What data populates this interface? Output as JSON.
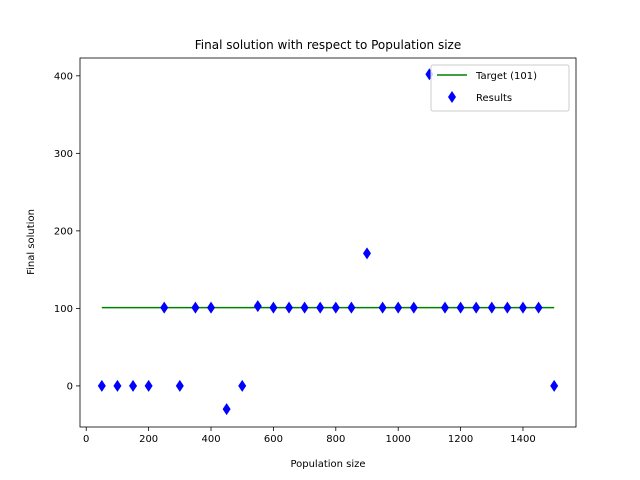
{
  "chart_data": {
    "type": "scatter",
    "title": "Final solution with respect to Population size",
    "xlabel": "Population size",
    "ylabel": "Final solution",
    "xlim": [
      -20,
      1570
    ],
    "ylim": [
      -53,
      423
    ],
    "xticks": [
      0,
      200,
      400,
      600,
      800,
      1000,
      1200,
      1400
    ],
    "yticks": [
      0,
      100,
      200,
      300,
      400
    ],
    "grid": false,
    "legend_position": "top-right",
    "series": [
      {
        "name": "Target (101)",
        "kind": "line",
        "color": "#008000",
        "x": [
          50,
          1500
        ],
        "y": [
          101,
          101
        ]
      },
      {
        "name": "Results",
        "kind": "scatter",
        "marker": "thin-diamond",
        "color": "#0000ff",
        "x": [
          50,
          100,
          150,
          200,
          250,
          300,
          350,
          400,
          450,
          500,
          550,
          600,
          650,
          700,
          750,
          800,
          850,
          900,
          950,
          1000,
          1050,
          1100,
          1150,
          1200,
          1250,
          1300,
          1350,
          1400,
          1450,
          1500
        ],
        "y": [
          0,
          0,
          0,
          0,
          101,
          0,
          101,
          101,
          -30,
          0,
          103,
          101,
          101,
          101,
          101,
          101,
          101,
          171,
          101,
          101,
          101,
          402,
          101,
          101,
          101,
          101,
          101,
          101,
          101,
          0
        ]
      }
    ]
  }
}
